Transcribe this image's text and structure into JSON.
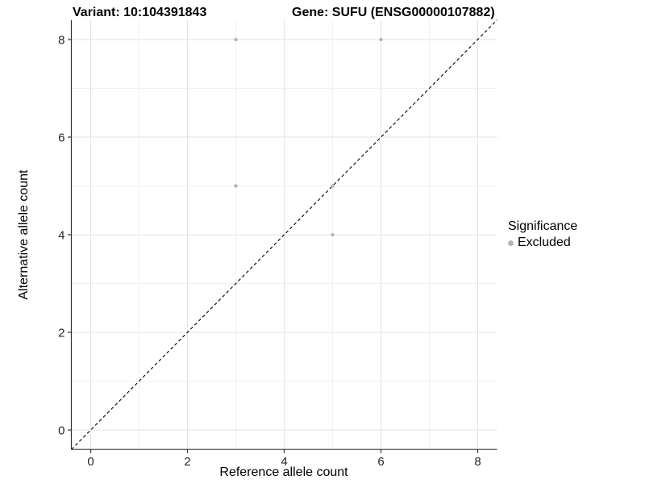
{
  "header": {
    "variant_title": "Variant: 10:104391843",
    "gene_title": "Gene: SUFU (ENSG00000107882)"
  },
  "legend": {
    "title": "Significance",
    "items": [
      {
        "label": "Excluded",
        "color": "#b5b5b5"
      }
    ]
  },
  "colors": {
    "background": "#ffffff",
    "major_grid": "#e3e3e3",
    "minor_grid": "#f1f1f1",
    "axis_line": "#333333",
    "tick_label": "#262626",
    "reference_line": "#000000",
    "point_excluded": "#b5b5b5"
  },
  "chart_data": {
    "type": "scatter",
    "title": "Variant: 10:104391843   |   Gene: SUFU (ENSG00000107882)",
    "xlabel": "Reference allele count",
    "ylabel": "Alternative allele count",
    "xlim": [
      -0.4,
      8.4
    ],
    "ylim": [
      -0.4,
      8.4
    ],
    "x_ticks": [
      0,
      2,
      4,
      6,
      8
    ],
    "y_ticks": [
      0,
      2,
      4,
      6,
      8
    ],
    "x_minor_ticks": [
      1,
      3,
      5,
      7
    ],
    "y_minor_ticks": [
      1,
      3,
      5,
      7
    ],
    "grid": true,
    "legend_position": "right",
    "series": [
      {
        "name": "Excluded",
        "color": "#b5b5b5",
        "points": [
          [
            3,
            8
          ],
          [
            6,
            8
          ],
          [
            3,
            5
          ],
          [
            5,
            5
          ],
          [
            5,
            4
          ]
        ]
      }
    ],
    "reference_line": {
      "kind": "identity",
      "style": "dashed",
      "color": "#000000"
    }
  }
}
